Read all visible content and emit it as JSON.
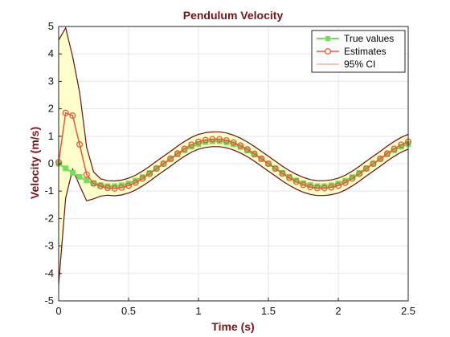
{
  "chart_data": {
    "type": "line",
    "title": "Pendulum Velocity",
    "xlabel": "Time (s)",
    "ylabel": "Velocity (m/s)",
    "xlim": [
      0,
      2.5
    ],
    "ylim": [
      -5,
      5
    ],
    "xticks": [
      0,
      0.5,
      1,
      1.5,
      2,
      2.5
    ],
    "xtick_labels": [
      "0",
      "0.5",
      "1",
      "1.5",
      "2",
      "2.5"
    ],
    "yticks": [
      -5,
      -4,
      -3,
      -2,
      -1,
      0,
      1,
      2,
      3,
      4,
      5
    ],
    "ytick_labels": [
      "-5",
      "-4",
      "-3",
      "-2",
      "-1",
      "0",
      "1",
      "2",
      "3",
      "4",
      "5"
    ],
    "grid": true,
    "legend_position": "top-right",
    "colors": {
      "true_values": "#6ee05a",
      "estimates": "#e8583a",
      "ci_line": "#6b1010",
      "ci_fill": "#ffffcc",
      "text_accent": "#7a1416"
    },
    "series": [
      {
        "name": "True values",
        "x": [
          0,
          0.05,
          0.1,
          0.15,
          0.2,
          0.25,
          0.3,
          0.35,
          0.4,
          0.45,
          0.5,
          0.55,
          0.6,
          0.65,
          0.7,
          0.75,
          0.8,
          0.85,
          0.9,
          0.95,
          1.0,
          1.05,
          1.1,
          1.15,
          1.2,
          1.25,
          1.3,
          1.35,
          1.4,
          1.45,
          1.5,
          1.55,
          1.6,
          1.65,
          1.7,
          1.75,
          1.8,
          1.85,
          1.9,
          1.95,
          2.0,
          2.05,
          2.1,
          2.15,
          2.2,
          2.25,
          2.3,
          2.35,
          2.4,
          2.45,
          2.5
        ],
        "y": [
          0,
          -0.17,
          -0.33,
          -0.48,
          -0.61,
          -0.71,
          -0.78,
          -0.82,
          -0.82,
          -0.79,
          -0.72,
          -0.62,
          -0.49,
          -0.34,
          -0.17,
          0,
          0.17,
          0.34,
          0.49,
          0.62,
          0.72,
          0.79,
          0.82,
          0.82,
          0.78,
          0.71,
          0.61,
          0.48,
          0.33,
          0.17,
          0,
          -0.17,
          -0.33,
          -0.48,
          -0.61,
          -0.71,
          -0.78,
          -0.82,
          -0.82,
          -0.79,
          -0.72,
          -0.62,
          -0.49,
          -0.34,
          -0.17,
          0,
          0.17,
          0.34,
          0.49,
          0.62,
          0.72
        ]
      },
      {
        "name": "Estimates",
        "x": [
          0,
          0.05,
          0.1,
          0.15,
          0.2,
          0.25,
          0.3,
          0.35,
          0.4,
          0.45,
          0.5,
          0.55,
          0.6,
          0.65,
          0.7,
          0.75,
          0.8,
          0.85,
          0.9,
          0.95,
          1.0,
          1.05,
          1.1,
          1.15,
          1.2,
          1.25,
          1.3,
          1.35,
          1.4,
          1.45,
          1.5,
          1.55,
          1.6,
          1.65,
          1.7,
          1.75,
          1.8,
          1.85,
          1.9,
          1.95,
          2.0,
          2.05,
          2.1,
          2.15,
          2.2,
          2.25,
          2.3,
          2.35,
          2.4,
          2.45,
          2.5
        ],
        "y": [
          0.05,
          1.85,
          1.75,
          0.7,
          -0.4,
          -0.72,
          -0.82,
          -0.88,
          -0.9,
          -0.87,
          -0.8,
          -0.69,
          -0.54,
          -0.37,
          -0.18,
          0,
          0.18,
          0.37,
          0.54,
          0.69,
          0.8,
          0.86,
          0.89,
          0.89,
          0.85,
          0.77,
          0.66,
          0.52,
          0.36,
          0.18,
          0,
          -0.18,
          -0.36,
          -0.52,
          -0.66,
          -0.77,
          -0.85,
          -0.89,
          -0.89,
          -0.86,
          -0.8,
          -0.69,
          -0.54,
          -0.37,
          -0.18,
          0,
          0.18,
          0.37,
          0.54,
          0.69,
          0.8
        ]
      },
      {
        "name": "95% CI",
        "x": [
          0,
          0.05,
          0.1,
          0.15,
          0.2,
          0.25,
          0.3,
          0.35,
          0.4,
          0.45,
          0.5,
          0.55,
          0.6,
          0.65,
          0.7,
          0.75,
          0.8,
          0.85,
          0.9,
          0.95,
          1.0,
          1.05,
          1.1,
          1.15,
          1.2,
          1.25,
          1.3,
          1.35,
          1.4,
          1.45,
          1.5,
          1.55,
          1.6,
          1.65,
          1.7,
          1.75,
          1.8,
          1.85,
          1.9,
          1.95,
          2.0,
          2.05,
          2.1,
          2.15,
          2.2,
          2.25,
          2.3,
          2.35,
          2.4,
          2.45,
          2.5
        ],
        "upper": [
          4.5,
          4.95,
          3.9,
          2.6,
          0.6,
          -0.3,
          -0.55,
          -0.62,
          -0.63,
          -0.6,
          -0.53,
          -0.42,
          -0.27,
          -0.1,
          0.09,
          0.27,
          0.45,
          0.64,
          0.81,
          0.96,
          1.07,
          1.13,
          1.16,
          1.16,
          1.12,
          1.04,
          0.93,
          0.79,
          0.63,
          0.45,
          0.27,
          0.09,
          -0.09,
          -0.25,
          -0.39,
          -0.5,
          -0.58,
          -0.62,
          -0.62,
          -0.59,
          -0.53,
          -0.42,
          -0.27,
          -0.1,
          0.09,
          0.27,
          0.45,
          0.64,
          0.81,
          0.96,
          1.07
        ],
        "lower": [
          -4.4,
          -1.25,
          -0.2,
          -0.8,
          -1.35,
          -1.28,
          -1.18,
          -1.15,
          -1.17,
          -1.14,
          -1.07,
          -0.96,
          -0.81,
          -0.64,
          -0.45,
          -0.27,
          -0.09,
          0.1,
          0.27,
          0.42,
          0.53,
          0.59,
          0.62,
          0.62,
          0.58,
          0.5,
          0.39,
          0.25,
          0.09,
          -0.09,
          -0.27,
          -0.45,
          -0.63,
          -0.79,
          -0.93,
          -1.04,
          -1.12,
          -1.16,
          -1.16,
          -1.13,
          -1.07,
          -0.96,
          -0.81,
          -0.64,
          -0.45,
          -0.27,
          -0.09,
          0.1,
          0.27,
          0.42,
          0.53
        ]
      }
    ]
  }
}
